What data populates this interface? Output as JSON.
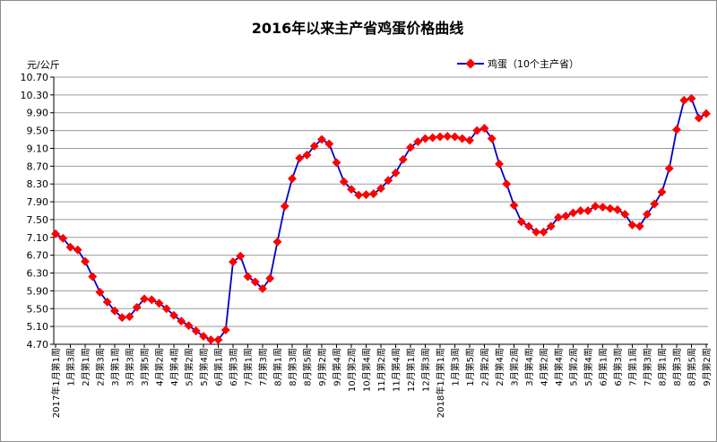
{
  "chart_data": {
    "type": "line",
    "title": "2016年以来主产省鸡蛋价格曲线",
    "ylabel": "元/公斤",
    "xlabel": "",
    "ylim": [
      4.7,
      10.7
    ],
    "yticks": [
      "4.70",
      "5.10",
      "5.50",
      "5.90",
      "6.30",
      "6.70",
      "7.10",
      "7.50",
      "7.90",
      "8.30",
      "8.70",
      "9.10",
      "9.50",
      "9.90",
      "10.30",
      "10.70"
    ],
    "grid": true,
    "legend_position": "top-right",
    "x_tick_labels": [
      "2017年1月第1周",
      "1月第3周",
      "2月第1周",
      "2月第3周",
      "3月第1周",
      "3月第3周",
      "3月第5周",
      "4月第2周",
      "4月第4周",
      "5月第2周",
      "5月第4周",
      "6月第1周",
      "6月第3周",
      "7月第1周",
      "7月第3周",
      "8月第1周",
      "8月第3周",
      "8月第5周",
      "9月第2周",
      "9月第4周",
      "10月第2周",
      "10月第4周",
      "11月第2周",
      "11月第4周",
      "12月第1周",
      "12月第3周",
      "2018年1月第1周",
      "1月第3周",
      "1月第5周",
      "2月第2周",
      "2月第4周",
      "3月第2周",
      "3月第4周",
      "4月第2周",
      "4月第4周",
      "5月第2周",
      "5月第4周",
      "6月第1周",
      "6月第3周",
      "7月第1周",
      "7月第3周",
      "8月第1周",
      "8月第3周",
      "8月第5周",
      "9月第2周"
    ],
    "series": [
      {
        "name": "鸡蛋（10个主产省）",
        "color": "#0000c8",
        "marker_color": "#ff0000",
        "values": [
          7.18,
          7.08,
          6.88,
          6.82,
          6.56,
          6.22,
          5.87,
          5.65,
          5.45,
          5.3,
          5.32,
          5.53,
          5.72,
          5.7,
          5.62,
          5.5,
          5.35,
          5.22,
          5.12,
          5.0,
          4.88,
          4.8,
          4.8,
          5.02,
          6.55,
          6.68,
          6.22,
          6.1,
          5.95,
          6.18,
          7.0,
          7.8,
          8.42,
          8.88,
          8.95,
          9.15,
          9.3,
          9.2,
          8.78,
          8.35,
          8.18,
          8.05,
          8.06,
          8.08,
          8.2,
          8.38,
          8.55,
          8.85,
          9.12,
          9.25,
          9.32,
          9.34,
          9.36,
          9.37,
          9.36,
          9.32,
          9.28,
          9.5,
          9.55,
          9.32,
          8.75,
          8.3,
          7.82,
          7.45,
          7.35,
          7.22,
          7.22,
          7.35,
          7.55,
          7.58,
          7.65,
          7.7,
          7.7,
          7.8,
          7.78,
          7.75,
          7.72,
          7.62,
          7.38,
          7.35,
          7.62,
          7.85,
          8.12,
          8.65,
          9.52,
          10.18,
          10.22,
          9.78,
          9.88
        ]
      }
    ]
  }
}
